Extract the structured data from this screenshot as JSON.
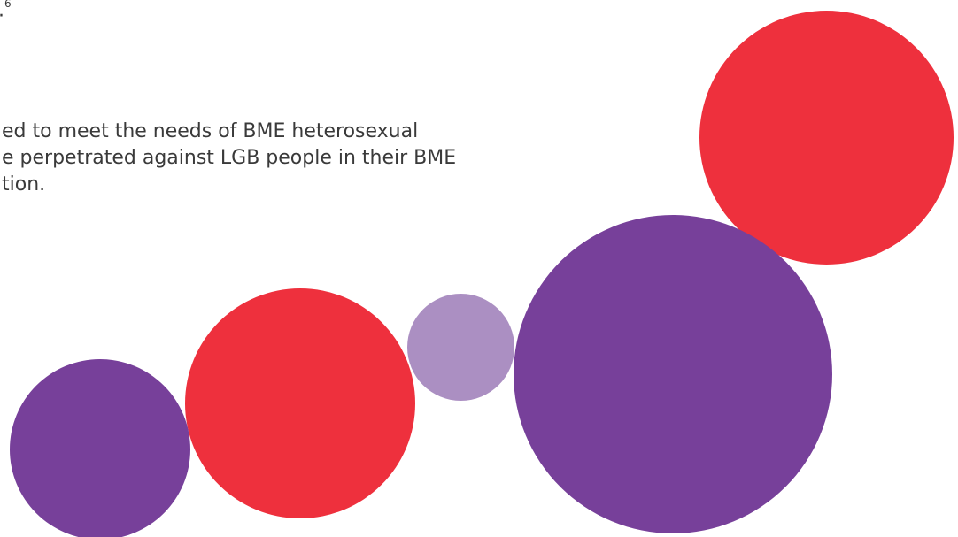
{
  "text": {
    "fragment": ".",
    "footnote": "6",
    "paragraph_lines": [
      "ed to meet the needs of BME heterosexual",
      "e perpetrated against LGB people in their BME",
      "tion."
    ]
  },
  "colors": {
    "text": "#3a3a3a",
    "purple": "#77409a",
    "red": "#ee303d",
    "lilac": "#ab8fc2"
  }
}
